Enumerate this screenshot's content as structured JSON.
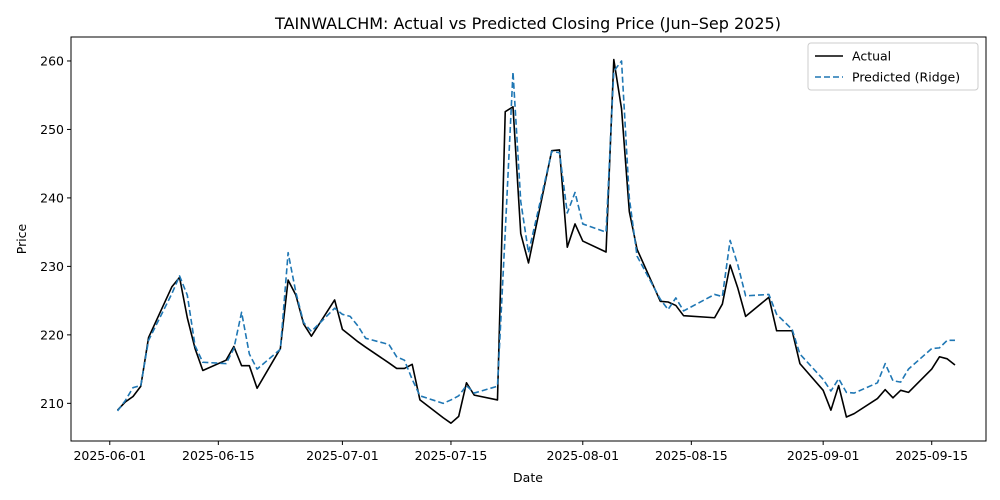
{
  "chart_data": {
    "type": "line",
    "title": "TAINWALCHM: Actual vs Predicted Closing Price (Jun–Sep 2025)",
    "xlabel": "Date",
    "ylabel": "Price",
    "xlim": [
      "2025-05-27",
      "2025-09-22"
    ],
    "ylim": [
      204.5,
      263.5
    ],
    "x_ticks": [
      "2025-06-01",
      "2025-06-15",
      "2025-07-01",
      "2025-07-15",
      "2025-08-01",
      "2025-08-15",
      "2025-09-01",
      "2025-09-15"
    ],
    "y_ticks": [
      210,
      220,
      230,
      240,
      250,
      260
    ],
    "grid": false,
    "legend_position": "top-right",
    "x": [
      "2025-06-02",
      "2025-06-03",
      "2025-06-04",
      "2025-06-05",
      "2025-06-06",
      "2025-06-09",
      "2025-06-10",
      "2025-06-11",
      "2025-06-12",
      "2025-06-13",
      "2025-06-16",
      "2025-06-17",
      "2025-06-18",
      "2025-06-19",
      "2025-06-20",
      "2025-06-23",
      "2025-06-24",
      "2025-06-25",
      "2025-06-26",
      "2025-06-27",
      "2025-06-30",
      "2025-07-01",
      "2025-07-02",
      "2025-07-03",
      "2025-07-04",
      "2025-07-07",
      "2025-07-08",
      "2025-07-09",
      "2025-07-10",
      "2025-07-11",
      "2025-07-14",
      "2025-07-15",
      "2025-07-16",
      "2025-07-17",
      "2025-07-18",
      "2025-07-21",
      "2025-07-22",
      "2025-07-23",
      "2025-07-24",
      "2025-07-25",
      "2025-07-28",
      "2025-07-29",
      "2025-07-30",
      "2025-07-31",
      "2025-08-01",
      "2025-08-04",
      "2025-08-05",
      "2025-08-06",
      "2025-08-07",
      "2025-08-08",
      "2025-08-11",
      "2025-08-12",
      "2025-08-13",
      "2025-08-14",
      "2025-08-18",
      "2025-08-19",
      "2025-08-20",
      "2025-08-21",
      "2025-08-22",
      "2025-08-25",
      "2025-08-26",
      "2025-08-28",
      "2025-08-29",
      "2025-09-01",
      "2025-09-02",
      "2025-09-03",
      "2025-09-04",
      "2025-09-05",
      "2025-09-08",
      "2025-09-09",
      "2025-09-10",
      "2025-09-11",
      "2025-09-12",
      "2025-09-15",
      "2025-09-16",
      "2025-09-17",
      "2025-09-18"
    ],
    "series": [
      {
        "name": "Actual",
        "color": "#000000",
        "style": "solid",
        "values": [
          209.0,
          210.2,
          211.0,
          212.5,
          219.6,
          227.0,
          228.4,
          222.5,
          218.0,
          214.8,
          216.3,
          218.3,
          215.5,
          215.5,
          212.2,
          218.0,
          228.0,
          225.8,
          221.6,
          219.8,
          225.1,
          220.8,
          219.9,
          219.0,
          218.2,
          215.9,
          215.1,
          215.1,
          215.7,
          210.5,
          207.9,
          207.1,
          208.1,
          213.0,
          211.2,
          210.5,
          252.6,
          253.3,
          234.8,
          230.5,
          246.9,
          247.0,
          232.8,
          236.2,
          233.7,
          232.1,
          260.2,
          253.0,
          238.0,
          232.5,
          224.9,
          224.8,
          224.3,
          222.8,
          222.5,
          224.5,
          230.2,
          226.8,
          222.7,
          225.5,
          220.6,
          220.6,
          215.8,
          211.9,
          209.0,
          212.6,
          208.0,
          208.5,
          210.7,
          212.0,
          210.8,
          211.9,
          211.6,
          215.0,
          216.8,
          216.5,
          215.6
        ]
      },
      {
        "name": "Predicted (Ridge)",
        "color": "#1f77b4",
        "style": "dashed",
        "values": [
          208.9,
          210.4,
          212.3,
          212.6,
          219.2,
          226.0,
          228.6,
          225.8,
          218.4,
          216.0,
          215.8,
          218.0,
          223.3,
          217.2,
          215.0,
          217.9,
          232.0,
          226.2,
          221.8,
          220.5,
          223.9,
          223.0,
          222.7,
          221.3,
          219.5,
          218.6,
          216.8,
          216.3,
          213.5,
          211.1,
          210.0,
          210.5,
          211.1,
          212.6,
          211.5,
          212.5,
          235.0,
          258.4,
          239.5,
          232.0,
          246.8,
          246.6,
          237.8,
          240.8,
          236.2,
          235.0,
          258.5,
          260.0,
          240.0,
          231.5,
          225.2,
          223.7,
          225.4,
          223.5,
          225.9,
          225.6,
          233.8,
          230.2,
          225.7,
          225.9,
          223.0,
          220.8,
          217.2,
          213.5,
          211.8,
          213.6,
          211.6,
          211.5,
          213.0,
          215.8,
          213.3,
          213.1,
          215.0,
          218.0,
          218.1,
          219.2,
          219.2
        ]
      }
    ]
  }
}
